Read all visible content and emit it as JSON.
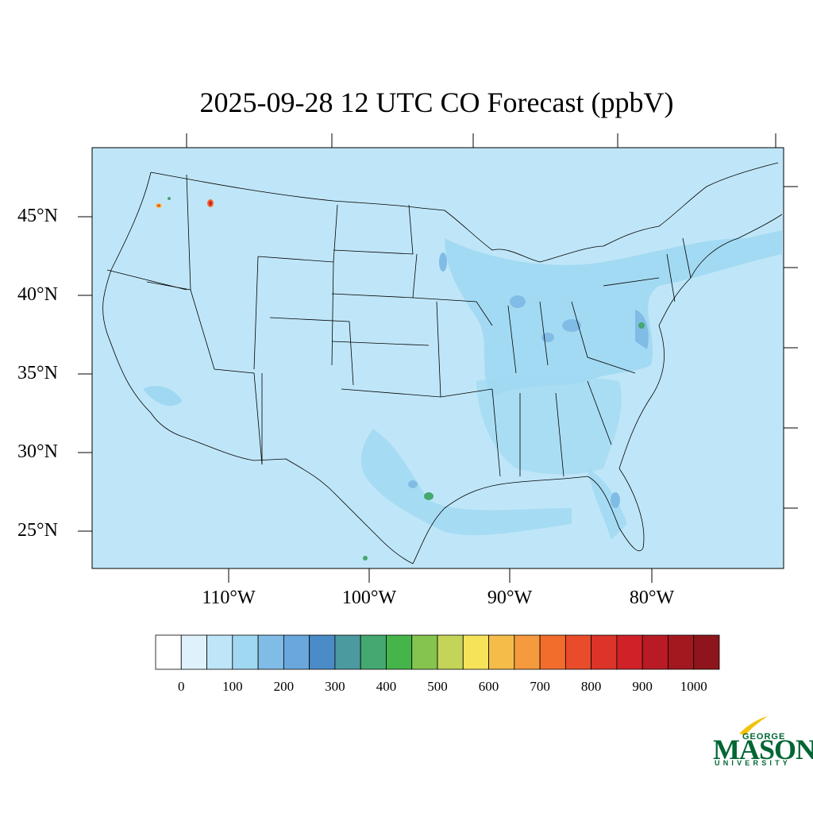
{
  "title": "2025-09-28 12 UTC CO Forecast (ppbV)",
  "lat_labels": [
    "45°N",
    "40°N",
    "35°N",
    "30°N",
    "25°N"
  ],
  "lon_labels": [
    "110°W",
    "100°W",
    "90°W",
    "80°W"
  ],
  "colorbar": {
    "colors": [
      "#ffffff",
      "#dff2fb",
      "#bfe6f8",
      "#a0d8f2",
      "#81bce6",
      "#69a7dc",
      "#4a8bc8",
      "#4a9aa0",
      "#44a870",
      "#45b54a",
      "#84c44f",
      "#c4d458",
      "#f6e35a",
      "#f6bc4a",
      "#f59a3e",
      "#f26c2c",
      "#e84c2a",
      "#dc3428",
      "#d02128",
      "#b81b24",
      "#a3181f",
      "#8e151b"
    ],
    "tick_labels": [
      "0",
      "100",
      "200",
      "300",
      "400",
      "500",
      "600",
      "700",
      "800",
      "900",
      "1000"
    ]
  },
  "background_color": "#bfe6f8",
  "logo": {
    "george": "GEORGE",
    "mason": "MASON",
    "university": "UNIVERSITY"
  }
}
